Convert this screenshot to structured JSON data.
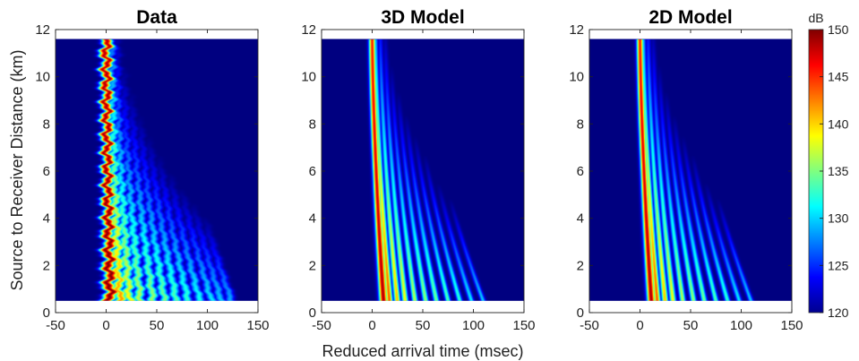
{
  "chart_data": {
    "type": "heatmap",
    "xlabel": "Reduced arrival time (msec)",
    "ylabel": "Source to Receiver Distance (km)",
    "xlim": [
      -50,
      150
    ],
    "ylim": [
      0,
      12
    ],
    "data_range_km": [
      0.5,
      11.6
    ],
    "xticks": [
      "-50",
      "0",
      "50",
      "100",
      "150"
    ],
    "yticks": [
      "0",
      "2",
      "4",
      "6",
      "8",
      "10",
      "12"
    ],
    "colorbar": {
      "label": "dB",
      "range": [
        120,
        150
      ],
      "ticks": [
        "120",
        "125",
        "130",
        "135",
        "140",
        "145",
        "150"
      ],
      "colormap": "jet"
    },
    "panels": [
      {
        "title": "Data",
        "arrivals": [
          {
            "x0": 0,
            "x1": 4,
            "shift": 0,
            "amp": 150,
            "decay": 0.6,
            "width": 3.5,
            "jitter": 2.5
          },
          {
            "x0": 5,
            "x1": 14,
            "shift": 8,
            "amp": 142,
            "decay": 1.4,
            "width": 3.2,
            "jitter": 2
          },
          {
            "x0": 10,
            "x1": 24,
            "shift": 16,
            "amp": 139,
            "decay": 1.6,
            "width": 3.0,
            "jitter": 1.6
          },
          {
            "x0": 16,
            "x1": 35,
            "shift": 25,
            "amp": 137,
            "decay": 1.7,
            "width": 2.9,
            "jitter": 1.4
          },
          {
            "x0": 22,
            "x1": 48,
            "shift": 34,
            "amp": 136,
            "decay": 1.8,
            "width": 2.8,
            "jitter": 1.2
          },
          {
            "x0": 28,
            "x1": 60,
            "shift": 43,
            "amp": 135,
            "decay": 1.9,
            "width": 2.7,
            "jitter": 1.1
          },
          {
            "x0": 34,
            "x1": 72,
            "shift": 52,
            "amp": 134,
            "decay": 2.0,
            "width": 2.7,
            "jitter": 1
          },
          {
            "x0": 40,
            "x1": 84,
            "shift": 62,
            "amp": 133,
            "decay": 2.1,
            "width": 2.6,
            "jitter": 1
          },
          {
            "x0": 46,
            "x1": 96,
            "shift": 72,
            "amp": 132,
            "decay": 2.2,
            "width": 2.6,
            "jitter": 0.9
          },
          {
            "x0": 52,
            "x1": 108,
            "shift": 82,
            "amp": 131,
            "decay": 2.3,
            "width": 2.5,
            "jitter": 0.9
          },
          {
            "x0": 58,
            "x1": 118,
            "shift": 92,
            "amp": 130,
            "decay": 2.4,
            "width": 2.5,
            "jitter": 0.8
          },
          {
            "x0": 64,
            "x1": 128,
            "shift": 102,
            "amp": 129,
            "decay": 2.5,
            "width": 2.4,
            "jitter": 0.8
          }
        ]
      },
      {
        "title": "3D Model",
        "arrivals": [
          {
            "x0": 0,
            "x1": 12,
            "shift": 0,
            "amp": 149,
            "decay": 1.2,
            "width": 2.2,
            "jitter": 0
          },
          {
            "x0": 3,
            "x1": 18,
            "shift": 3,
            "amp": 144,
            "decay": 1.3,
            "width": 1.8,
            "jitter": 0
          },
          {
            "x0": 8,
            "x1": 26,
            "shift": 10,
            "amp": 141,
            "decay": 1.5,
            "width": 1.7,
            "jitter": 0
          },
          {
            "x0": 13,
            "x1": 34,
            "shift": 18,
            "amp": 139,
            "decay": 1.6,
            "width": 1.7,
            "jitter": 0
          },
          {
            "x0": 18,
            "x1": 44,
            "shift": 26,
            "amp": 137,
            "decay": 1.7,
            "width": 1.6,
            "jitter": 0
          },
          {
            "x0": 23,
            "x1": 55,
            "shift": 35,
            "amp": 136,
            "decay": 1.8,
            "width": 1.6,
            "jitter": 0
          },
          {
            "x0": 28,
            "x1": 66,
            "shift": 44,
            "amp": 135,
            "decay": 1.9,
            "width": 1.6,
            "jitter": 0
          },
          {
            "x0": 33,
            "x1": 78,
            "shift": 54,
            "amp": 134,
            "decay": 2.0,
            "width": 1.5,
            "jitter": 0
          },
          {
            "x0": 38,
            "x1": 90,
            "shift": 64,
            "amp": 133,
            "decay": 2.1,
            "width": 1.5,
            "jitter": 0
          },
          {
            "x0": 43,
            "x1": 102,
            "shift": 74,
            "amp": 131,
            "decay": 2.2,
            "width": 1.5,
            "jitter": 0
          },
          {
            "x0": 48,
            "x1": 114,
            "shift": 84,
            "amp": 130,
            "decay": 2.3,
            "width": 1.4,
            "jitter": 0
          }
        ]
      },
      {
        "title": "2D Model",
        "arrivals": [
          {
            "x0": 0,
            "x1": 12,
            "shift": 0,
            "amp": 149,
            "decay": 1.2,
            "width": 2.2,
            "jitter": 0
          },
          {
            "x0": 3,
            "x1": 18,
            "shift": 3,
            "amp": 144,
            "decay": 1.3,
            "width": 1.8,
            "jitter": 0
          },
          {
            "x0": 8,
            "x1": 26,
            "shift": 10,
            "amp": 141,
            "decay": 1.5,
            "width": 1.7,
            "jitter": 0
          },
          {
            "x0": 13,
            "x1": 34,
            "shift": 18,
            "amp": 139,
            "decay": 1.6,
            "width": 1.7,
            "jitter": 0
          },
          {
            "x0": 18,
            "x1": 44,
            "shift": 26,
            "amp": 137,
            "decay": 1.7,
            "width": 1.6,
            "jitter": 0
          },
          {
            "x0": 23,
            "x1": 55,
            "shift": 35,
            "amp": 136,
            "decay": 1.8,
            "width": 1.6,
            "jitter": 0
          },
          {
            "x0": 28,
            "x1": 66,
            "shift": 44,
            "amp": 135,
            "decay": 1.9,
            "width": 1.6,
            "jitter": 0
          },
          {
            "x0": 33,
            "x1": 78,
            "shift": 54,
            "amp": 134,
            "decay": 2.0,
            "width": 1.5,
            "jitter": 0
          },
          {
            "x0": 38,
            "x1": 90,
            "shift": 64,
            "amp": 133,
            "decay": 2.1,
            "width": 1.5,
            "jitter": 0
          },
          {
            "x0": 43,
            "x1": 102,
            "shift": 74,
            "amp": 131,
            "decay": 2.2,
            "width": 1.5,
            "jitter": 0
          },
          {
            "x0": 48,
            "x1": 114,
            "shift": 84,
            "amp": 130,
            "decay": 2.3,
            "width": 1.4,
            "jitter": 0
          }
        ]
      }
    ]
  }
}
